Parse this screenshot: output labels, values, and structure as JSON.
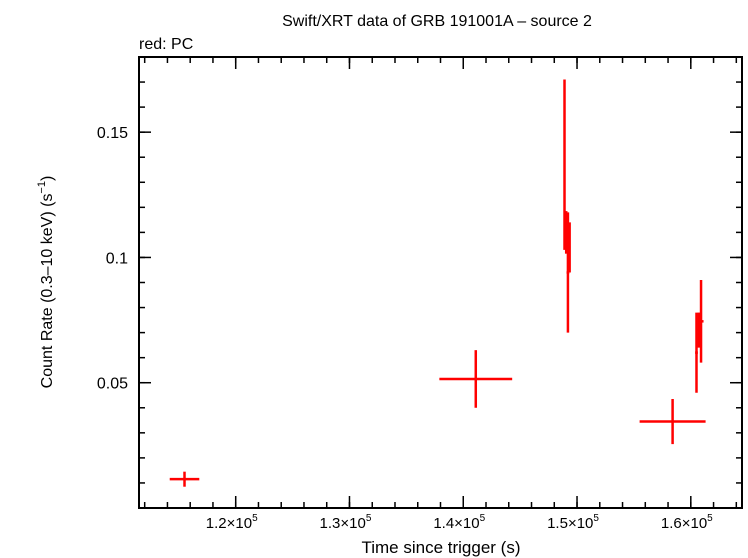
{
  "chart_data": {
    "type": "scatter",
    "title": "Swift/XRT data of GRB 191001A – source 2",
    "subtitle": "red: PC",
    "xlabel": "Time since trigger (s)",
    "ylabel_main": "Count Rate (0.3–10 keV) (s",
    "ylabel_sup": "−1",
    "ylabel_end": ")",
    "xlim": [
      111500,
      164500
    ],
    "ylim": [
      0.0,
      0.18
    ],
    "x_ticks": [
      {
        "value": 120000,
        "mant": "1.2×10",
        "exp": "5"
      },
      {
        "value": 130000,
        "mant": "1.3×10",
        "exp": "5"
      },
      {
        "value": 140000,
        "mant": "1.4×10",
        "exp": "5"
      },
      {
        "value": 150000,
        "mant": "1.5×10",
        "exp": "5"
      },
      {
        "value": 160000,
        "mant": "1.6×10",
        "exp": "5"
      }
    ],
    "y_ticks": [
      {
        "value": 0.05,
        "label": "0.05"
      },
      {
        "value": 0.1,
        "label": "0.1"
      },
      {
        "value": 0.15,
        "label": "0.15"
      }
    ],
    "x_minor_step": 2000,
    "y_minor_step": 0.01,
    "grid": false,
    "series": [
      {
        "color": "#ff0000",
        "points": [
          {
            "x": 115500,
            "xerr": 1300,
            "y": 0.0115,
            "yerr": 0.003
          },
          {
            "x": 141100,
            "xerr": 3200,
            "y": 0.0515,
            "yerr": 0.0115
          },
          {
            "x": 148900,
            "xerr": 80,
            "y": 0.137,
            "yerr": 0.034
          },
          {
            "x": 149050,
            "xerr": 100,
            "y": 0.11,
            "yerr": 0.0085
          },
          {
            "x": 149200,
            "xerr": 120,
            "y": 0.094,
            "yerr": 0.024
          },
          {
            "x": 149350,
            "xerr": 80,
            "y": 0.104,
            "yerr": 0.01
          },
          {
            "x": 158400,
            "xerr": 2900,
            "y": 0.0345,
            "yerr": 0.009
          },
          {
            "x": 160500,
            "xerr": 120,
            "y": 0.062,
            "yerr": 0.016
          },
          {
            "x": 160700,
            "xerr": 100,
            "y": 0.071,
            "yerr": 0.007
          },
          {
            "x": 160900,
            "xerr": 220,
            "y": 0.0745,
            "yerr": 0.0165
          }
        ]
      }
    ]
  }
}
